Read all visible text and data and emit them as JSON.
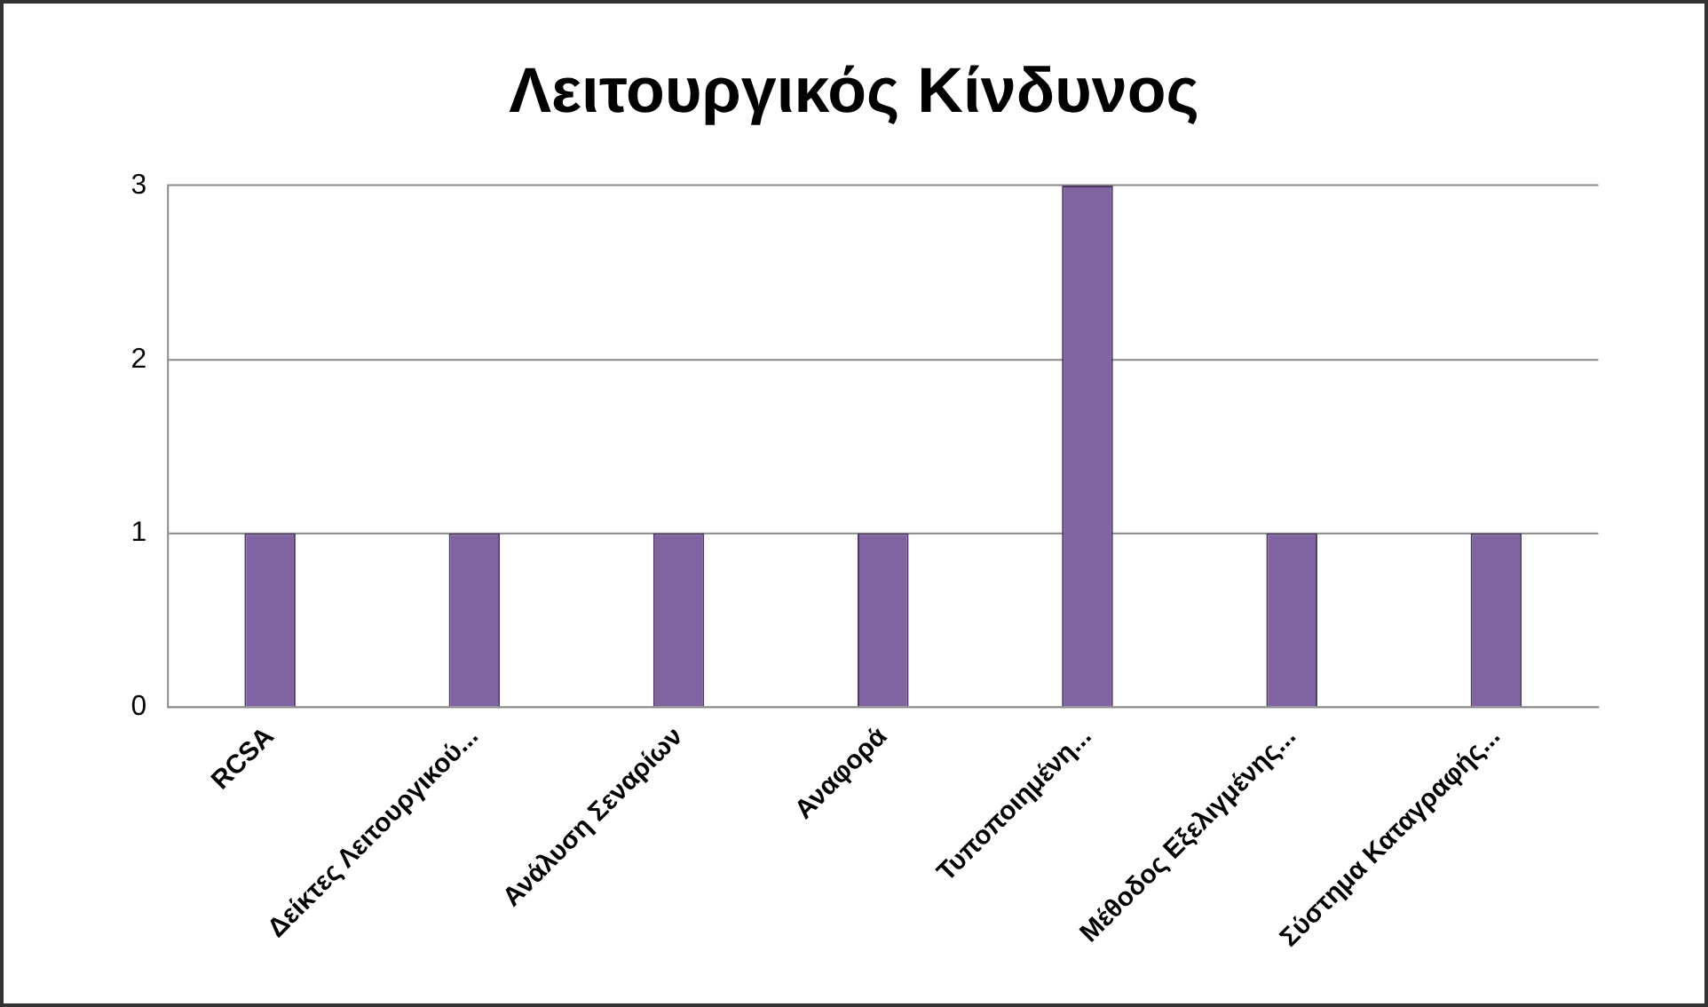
{
  "chart_data": {
    "type": "bar",
    "title": "Λειτουργικός Κίνδυνος",
    "categories": [
      "RCSA",
      "Δείκτες Λειτουργικού...",
      "Ανάλυση Σεναρίων",
      "Αναφορά",
      "Τυποποιημένη...",
      "Μέθοδος Εξελιγμένης...",
      "Σύστημα Καταγραφής..."
    ],
    "values": [
      1,
      1,
      1,
      1,
      3,
      1,
      1
    ],
    "color": "#8064a2",
    "ylim": [
      0,
      3
    ],
    "yticks": [
      0,
      1,
      2,
      3
    ],
    "grid": "y",
    "legend": false
  }
}
